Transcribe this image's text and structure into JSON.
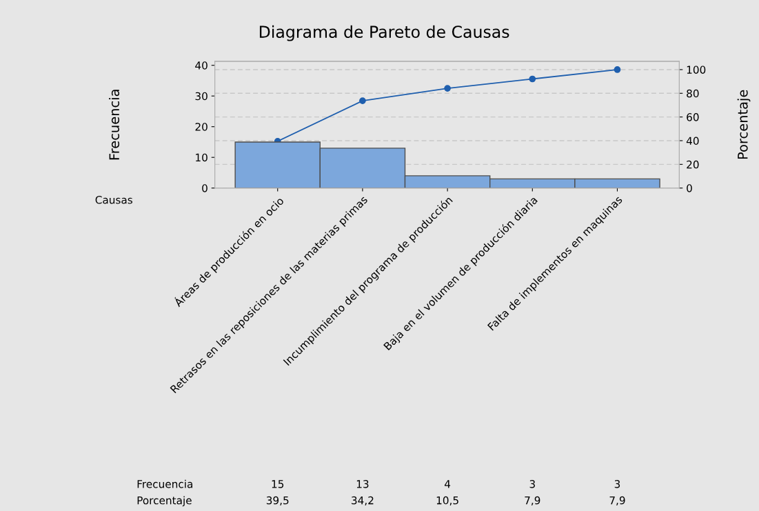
{
  "chart_data": {
    "type": "bar",
    "title": "Diagrama de Pareto de Causas",
    "xlabel": "Causas",
    "ylabel": "Frecuencia",
    "y2label": "Porcentaje",
    "categories": [
      "Áreas de producción en ocio",
      "Retrasos en las reposiciones de las materias primas",
      "Incumplimiento del programa de producción",
      "Baja en el volumen de producción diaria",
      "Falta de implementos en maquinas"
    ],
    "series": [
      {
        "name": "Frecuencia",
        "color": "#7ca7dc",
        "values": [
          15,
          13,
          4,
          3,
          3
        ],
        "value_labels": [
          "15",
          "13",
          "4",
          "3",
          "3"
        ]
      },
      {
        "type": "line",
        "axis": "y2",
        "color": "#1f5fae",
        "marker": "circle",
        "line_style": "solid",
        "values": [
          39.5,
          73.7,
          84.2,
          92.1,
          100
        ]
      }
    ],
    "annotations": [
      "Porcentaje",
      "39,5",
      "34,2",
      "10,5",
      "7,9",
      "7,9"
    ],
    "ylim": [
      0,
      41.3
    ],
    "yticks": [
      0,
      10,
      20,
      30,
      40
    ],
    "y2lim": [
      0,
      107
    ],
    "y2ticks": [
      0,
      20,
      40,
      60,
      80,
      100
    ],
    "grid": "y",
    "legend": false
  }
}
